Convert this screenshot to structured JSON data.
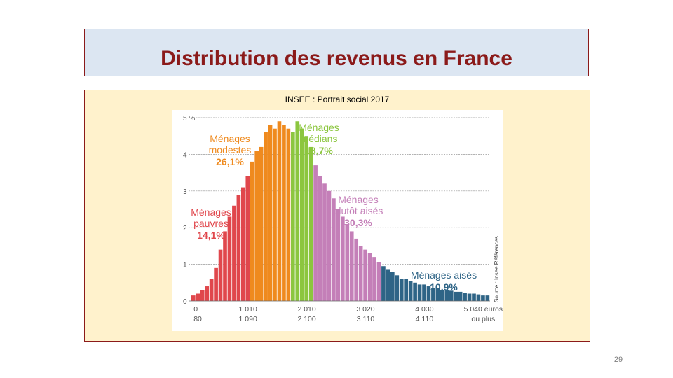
{
  "slide": {
    "title": "Distribution des revenus en France",
    "subtitle": "INSEE : Portrait social 2017",
    "page_number": "29"
  },
  "chart_data": {
    "type": "bar",
    "ylim": [
      0,
      5
    ],
    "y_ticks": [
      {
        "value": 0,
        "label": "0"
      },
      {
        "value": 1,
        "label": "1"
      },
      {
        "value": 2,
        "label": "2"
      },
      {
        "value": 3,
        "label": "3"
      },
      {
        "value": 4,
        "label": "4"
      },
      {
        "value": 5,
        "label": "5 %"
      }
    ],
    "x_tick_labels": [
      {
        "bar": 0,
        "top": "0",
        "bottom": "80"
      },
      {
        "bar": 12,
        "top": "1 010",
        "bottom": "1 090"
      },
      {
        "bar": 25,
        "top": "2 010",
        "bottom": "2 100"
      },
      {
        "bar": 38,
        "top": "3 020",
        "bottom": "3 110"
      },
      {
        "bar": 51,
        "top": "4 030",
        "bottom": "4 110"
      },
      {
        "bar": 64,
        "top": "5 040 euros",
        "bottom": "ou plus"
      }
    ],
    "source": "Source : Insee Références",
    "grid": true,
    "groups": [
      {
        "name": "Ménages pauvres",
        "share": "14,1%",
        "color": "#e0474c",
        "text_color": "#e0474c",
        "start": 0,
        "end": 13
      },
      {
        "name": "Ménages modestes",
        "share": "26,1%",
        "color": "#ef8a1e",
        "text_color": "#ef8a1e",
        "start": 13,
        "end": 22
      },
      {
        "name": "Ménages médians",
        "share": "18,7%",
        "color": "#8cc63f",
        "text_color": "#8cc63f",
        "start": 22,
        "end": 27
      },
      {
        "name": "Ménages plutôt aisés",
        "share": "30,3%",
        "color": "#c47fb8",
        "text_color": "#c47fb8",
        "start": 27,
        "end": 42
      },
      {
        "name": "Ménages aisés",
        "share": "10,9%",
        "color": "#2e6486",
        "text_color": "#2e6486",
        "start": 42,
        "end": 66
      }
    ],
    "values": [
      0.15,
      0.2,
      0.3,
      0.4,
      0.6,
      0.9,
      1.4,
      1.9,
      2.3,
      2.6,
      2.9,
      3.1,
      3.4,
      3.8,
      4.1,
      4.2,
      4.6,
      4.8,
      4.7,
      4.9,
      4.8,
      4.7,
      4.6,
      4.9,
      4.7,
      4.5,
      4.2,
      3.7,
      3.4,
      3.2,
      3.0,
      2.8,
      2.5,
      2.3,
      2.1,
      1.9,
      1.7,
      1.5,
      1.4,
      1.3,
      1.2,
      1.05,
      0.95,
      0.85,
      0.8,
      0.7,
      0.6,
      0.6,
      0.55,
      0.5,
      0.45,
      0.45,
      0.4,
      0.35,
      0.35,
      0.3,
      0.3,
      0.28,
      0.25,
      0.25,
      0.22,
      0.2,
      0.2,
      0.18,
      0.15,
      0.15
    ]
  }
}
